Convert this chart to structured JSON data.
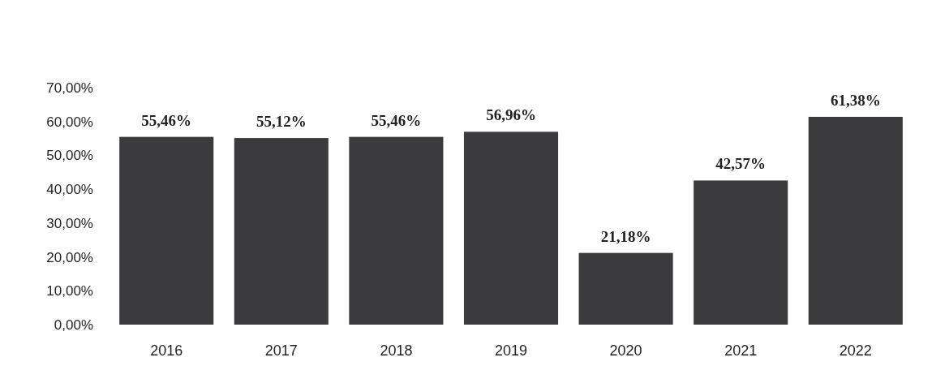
{
  "chart_data": {
    "type": "bar",
    "categories": [
      "2016",
      "2017",
      "2018",
      "2019",
      "2020",
      "2021",
      "2022"
    ],
    "values": [
      55.46,
      55.12,
      55.46,
      56.96,
      21.18,
      42.57,
      61.38
    ],
    "value_labels": [
      "55,46%",
      "55,12%",
      "55,46%",
      "56,96%",
      "21,18%",
      "42,57%",
      "61,38%"
    ],
    "color": "#3b3b3d",
    "ylim": [
      0,
      70
    ],
    "yticks": [
      {
        "value": 0,
        "label": "0,00%"
      },
      {
        "value": 10,
        "label": "10,00%"
      },
      {
        "value": 20,
        "label": "20,00%"
      },
      {
        "value": 30,
        "label": "30,00%"
      },
      {
        "value": 40,
        "label": "40,00%"
      },
      {
        "value": 50,
        "label": "50,00%"
      },
      {
        "value": 60,
        "label": "60,00%"
      },
      {
        "value": 70,
        "label": "70,00%"
      }
    ]
  }
}
